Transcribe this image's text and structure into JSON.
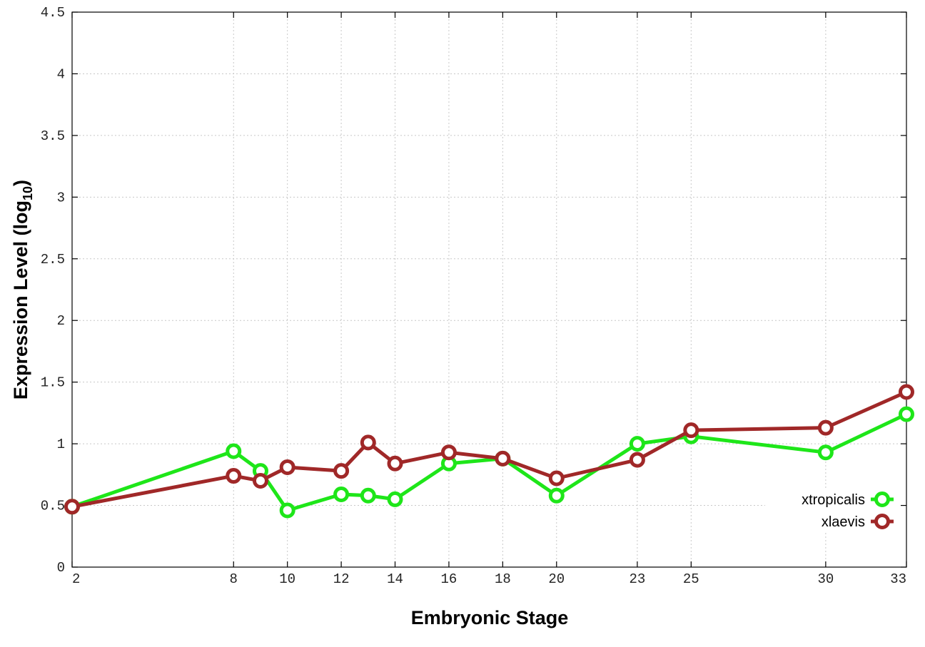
{
  "chart_data": {
    "type": "line",
    "title": "",
    "xlabel": "Embryonic Stage",
    "ylabel": {
      "main": "Expression Level (log",
      "sub": "10",
      "tail": ")"
    },
    "xlim": [
      2,
      33
    ],
    "ylim": [
      0,
      4.5
    ],
    "xticks": [
      2,
      8,
      10,
      12,
      14,
      16,
      18,
      20,
      23,
      25,
      30,
      33
    ],
    "xtick_labels": [
      "2",
      "8",
      "10",
      "12",
      "14",
      "16",
      "18",
      "20",
      "23",
      "25",
      "30",
      "33"
    ],
    "yticks": [
      0,
      0.5,
      1,
      1.5,
      2,
      2.5,
      3,
      3.5,
      4,
      4.5
    ],
    "ytick_labels": [
      "0",
      "0.5",
      "1",
      "1.5",
      "2",
      "2.5",
      "3",
      "3.5",
      "4",
      "4.5"
    ],
    "grid": true,
    "legend": "bottom-right",
    "series": [
      {
        "name": "xtropicalis",
        "color": "#1ee619",
        "x": [
          2,
          8,
          9,
          10,
          12,
          13,
          14,
          16,
          18,
          20,
          23,
          25,
          30,
          33
        ],
        "y": [
          0.49,
          0.94,
          0.78,
          0.46,
          0.59,
          0.58,
          0.55,
          0.84,
          0.88,
          0.58,
          1.0,
          1.06,
          0.93,
          1.24
        ]
      },
      {
        "name": "xlaevis",
        "color": "#a02828",
        "x": [
          2,
          8,
          9,
          10,
          12,
          13,
          14,
          16,
          18,
          20,
          23,
          25,
          30,
          33
        ],
        "y": [
          0.49,
          0.74,
          0.7,
          0.81,
          0.78,
          1.01,
          0.84,
          0.93,
          0.88,
          0.72,
          0.87,
          1.11,
          1.13,
          1.42
        ]
      }
    ]
  }
}
